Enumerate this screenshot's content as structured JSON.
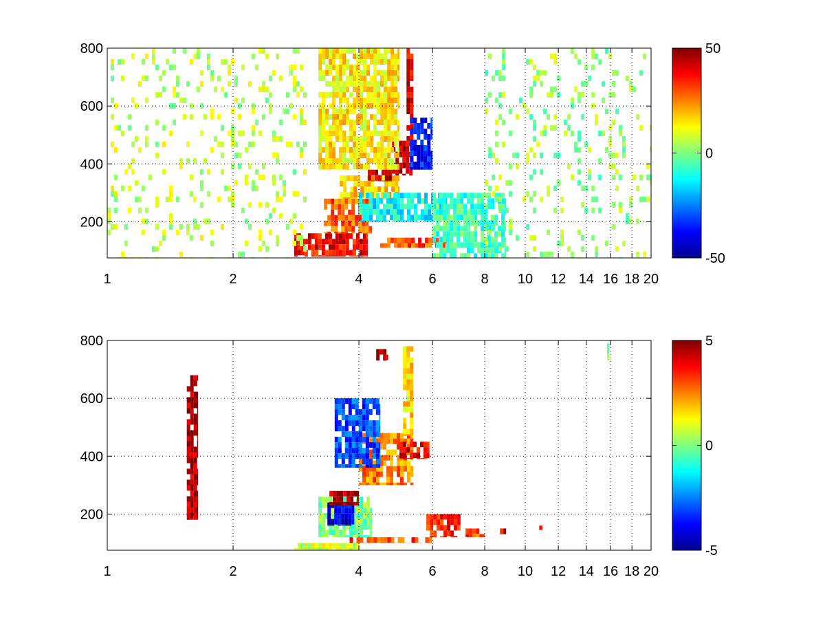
{
  "chart_data": [
    {
      "type": "heatmap",
      "title": "",
      "xlabel": "",
      "ylabel": "",
      "xscale": "log",
      "xlim": [
        1,
        20
      ],
      "ylim": [
        75,
        800
      ],
      "xticks": [
        1,
        2,
        4,
        6,
        8,
        10,
        12,
        14,
        16,
        18,
        20
      ],
      "xtick_labels": [
        "1",
        "2",
        "4",
        "6",
        "8",
        "10",
        "12",
        "14",
        "16",
        "18",
        "20"
      ],
      "yticks": [
        200,
        400,
        600,
        800
      ],
      "ytick_labels": [
        "200",
        "400",
        "600",
        "800"
      ],
      "grid": true,
      "colormap": "jet",
      "clim": [
        -50,
        50
      ],
      "colorbar_ticks": [
        -50,
        0,
        50
      ],
      "colorbar_tick_labels": [
        "-50",
        "0",
        "50"
      ],
      "background": "#ffffff",
      "features": [
        {
          "x": [
            2.8,
            4.2
          ],
          "y": [
            80,
            160
          ],
          "value": 38
        },
        {
          "x": [
            3.3,
            4.3
          ],
          "y": [
            160,
            280
          ],
          "value": 28
        },
        {
          "x": [
            3.6,
            5.0
          ],
          "y": [
            280,
            360
          ],
          "value": 18
        },
        {
          "x": [
            4.2,
            4.8
          ],
          "y": [
            340,
            380
          ],
          "value": 45
        },
        {
          "x": [
            4.8,
            5.4
          ],
          "y": [
            360,
            480
          ],
          "value": 42
        },
        {
          "x": [
            5.2,
            5.4
          ],
          "y": [
            480,
            800
          ],
          "value": 40
        },
        {
          "x": [
            5.3,
            6.0
          ],
          "y": [
            380,
            560
          ],
          "value": -35
        },
        {
          "x": [
            4.5,
            6.5
          ],
          "y": [
            110,
            145
          ],
          "value": 30
        },
        {
          "x": [
            4.0,
            6.5
          ],
          "y": [
            200,
            300
          ],
          "value": -12
        },
        {
          "x": [
            3.2,
            5.0
          ],
          "y": [
            380,
            800
          ],
          "value": 14
        },
        {
          "x": [
            1.0,
            3.0
          ],
          "y": [
            75,
            800
          ],
          "value": 6
        },
        {
          "x": [
            6.0,
            9.0
          ],
          "y": [
            75,
            300
          ],
          "value": -6
        },
        {
          "x": [
            8.0,
            20.0
          ],
          "y": [
            75,
            800
          ],
          "value": 2
        }
      ]
    },
    {
      "type": "heatmap",
      "title": "",
      "xlabel": "",
      "ylabel": "",
      "xscale": "log",
      "xlim": [
        1,
        20
      ],
      "ylim": [
        75,
        800
      ],
      "xticks": [
        1,
        2,
        4,
        6,
        8,
        10,
        12,
        14,
        16,
        18,
        20
      ],
      "xtick_labels": [
        "1",
        "2",
        "4",
        "6",
        "8",
        "10",
        "12",
        "14",
        "16",
        "18",
        "20"
      ],
      "yticks": [
        200,
        400,
        600,
        800
      ],
      "ytick_labels": [
        "200",
        "400",
        "600",
        "800"
      ],
      "grid": true,
      "colormap": "jet",
      "clim": [
        -5,
        5
      ],
      "colorbar_ticks": [
        -5,
        0,
        5
      ],
      "colorbar_tick_labels": [
        "-5",
        "0",
        "5"
      ],
      "background": "#ffffff",
      "features": [
        {
          "x": [
            2.8,
            4.0
          ],
          "y": [
            75,
            100
          ],
          "value": 0.8
        },
        {
          "x": [
            3.8,
            6.0
          ],
          "y": [
            100,
            120
          ],
          "value": 3
        },
        {
          "x": [
            3.2,
            4.3
          ],
          "y": [
            120,
            260
          ],
          "value": 0
        },
        {
          "x": [
            3.3,
            3.9
          ],
          "y": [
            160,
            240
          ],
          "value": -4
        },
        {
          "x": [
            3.4,
            4.0
          ],
          "y": [
            230,
            280
          ],
          "value": 4.5
        },
        {
          "x": [
            4.0,
            5.4
          ],
          "y": [
            300,
            480
          ],
          "value": 2.5
        },
        {
          "x": [
            3.5,
            4.5
          ],
          "y": [
            360,
            600
          ],
          "value": -3
        },
        {
          "x": [
            5.0,
            5.9
          ],
          "y": [
            390,
            450
          ],
          "value": 4
        },
        {
          "x": [
            5.1,
            5.4
          ],
          "y": [
            470,
            780
          ],
          "value": 1.5
        },
        {
          "x": [
            4.4,
            4.7
          ],
          "y": [
            730,
            770
          ],
          "value": 4.5
        },
        {
          "x": [
            5.8,
            7.0
          ],
          "y": [
            120,
            200
          ],
          "value": 3.5
        },
        {
          "x": [
            7.2,
            8.0
          ],
          "y": [
            120,
            150
          ],
          "value": 3
        },
        {
          "x": [
            8.7,
            9.0
          ],
          "y": [
            130,
            150
          ],
          "value": 4
        },
        {
          "x": [
            10.8,
            11.0
          ],
          "y": [
            145,
            160
          ],
          "value": 3.5
        },
        {
          "x": [
            1.55,
            1.65
          ],
          "y": [
            180,
            680
          ],
          "value": 4.5
        },
        {
          "x": [
            15.7,
            15.9
          ],
          "y": [
            730,
            790
          ],
          "value": 0.5
        }
      ]
    }
  ]
}
